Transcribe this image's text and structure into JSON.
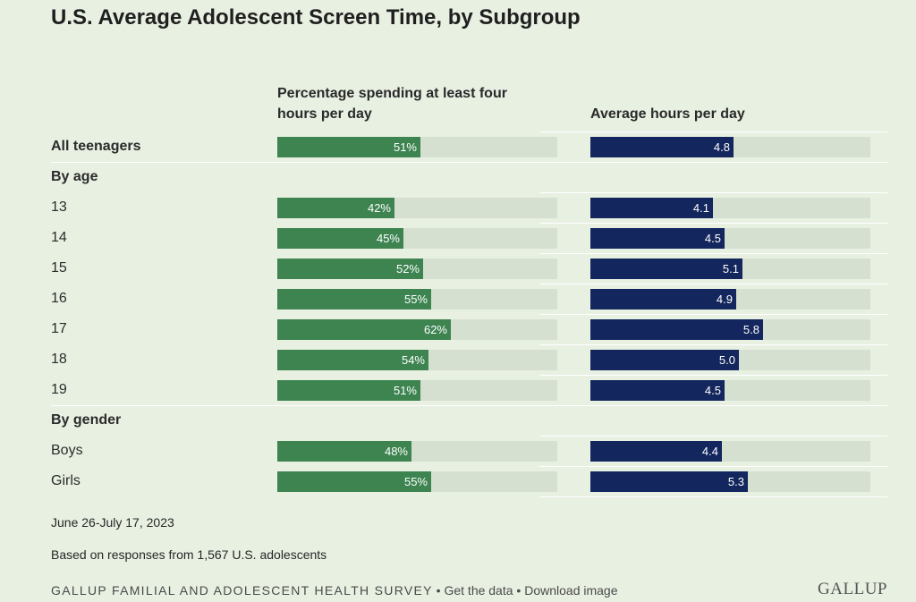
{
  "title": "U.S. Average Adolescent Screen Time, by Subgroup",
  "chart_data": {
    "type": "bar",
    "title": "U.S. Average Adolescent Screen Time, by Subgroup",
    "panels": [
      {
        "key": "pct",
        "header": "Percentage spending at least four hours per day",
        "max": 100,
        "color": "#3d8451"
      },
      {
        "key": "hrs",
        "header": "Average hours per day",
        "max": 9.4,
        "color": "#13265d"
      }
    ],
    "rows": [
      {
        "label": "All teenagers",
        "kind": "data",
        "bold": true,
        "pct": 51,
        "pct_label": "51%",
        "hrs": 4.8,
        "hrs_label": "4.8"
      },
      {
        "label": "By age",
        "kind": "group"
      },
      {
        "label": "13",
        "kind": "data",
        "pct": 42,
        "pct_label": "42%",
        "hrs": 4.1,
        "hrs_label": "4.1"
      },
      {
        "label": "14",
        "kind": "data",
        "pct": 45,
        "pct_label": "45%",
        "hrs": 4.5,
        "hrs_label": "4.5"
      },
      {
        "label": "15",
        "kind": "data",
        "pct": 52,
        "pct_label": "52%",
        "hrs": 5.1,
        "hrs_label": "5.1"
      },
      {
        "label": "16",
        "kind": "data",
        "pct": 55,
        "pct_label": "55%",
        "hrs": 4.9,
        "hrs_label": "4.9"
      },
      {
        "label": "17",
        "kind": "data",
        "pct": 62,
        "pct_label": "62%",
        "hrs": 5.8,
        "hrs_label": "5.8"
      },
      {
        "label": "18",
        "kind": "data",
        "pct": 54,
        "pct_label": "54%",
        "hrs": 5.0,
        "hrs_label": "5.0"
      },
      {
        "label": "19",
        "kind": "data",
        "pct": 51,
        "pct_label": "51%",
        "hrs": 4.5,
        "hrs_label": "4.5"
      },
      {
        "label": "By gender",
        "kind": "group"
      },
      {
        "label": "Boys",
        "kind": "data",
        "pct": 48,
        "pct_label": "48%",
        "hrs": 4.4,
        "hrs_label": "4.4"
      },
      {
        "label": "Girls",
        "kind": "data",
        "pct": 55,
        "pct_label": "55%",
        "hrs": 5.3,
        "hrs_label": "5.3"
      }
    ]
  },
  "notes": {
    "date": "June 26-July 17, 2023",
    "base": "Based on responses from 1,567 U.S. adolescents"
  },
  "footer": {
    "source": "GALLUP FAMILIAL AND ADOLESCENT HEALTH SURVEY",
    "sep": " • ",
    "get_data": "Get the data",
    "download": "Download image",
    "logo": "GALLUP"
  },
  "colors": {
    "background": "#e8f0e2",
    "track": "#d6e0d1",
    "green": "#3d8451",
    "navy": "#13265d"
  }
}
